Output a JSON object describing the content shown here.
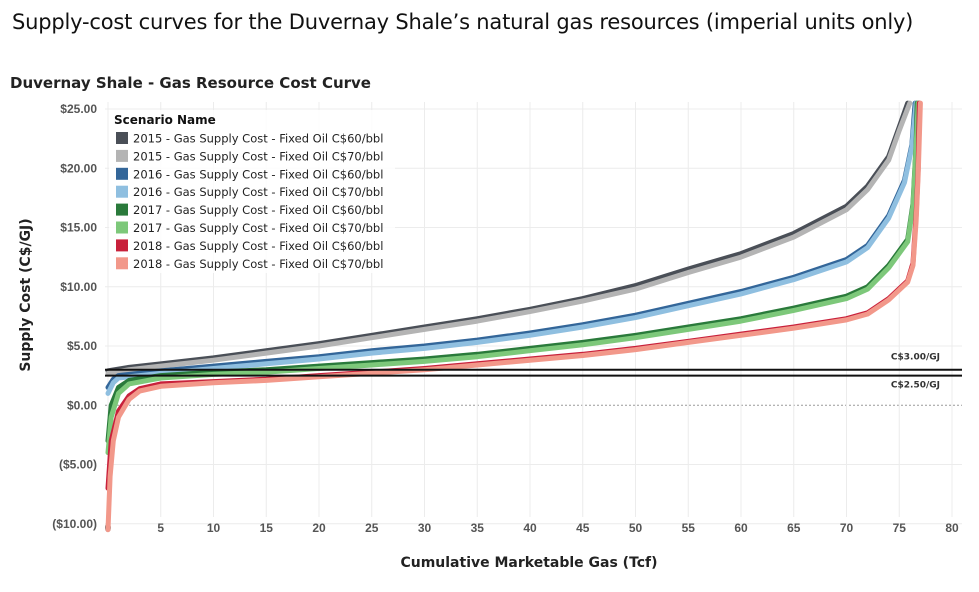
{
  "page_title": "Supply-cost curves for the Duvernay Shale’s natural gas resources (imperial units only)",
  "chart_data": {
    "type": "line",
    "title": "Duvernay Shale - Gas Resource Cost Curve",
    "xlabel": "Cumulative Marketable Gas (Tcf)",
    "ylabel": "Supply Cost (C$/GJ)",
    "xlim": [
      0,
      80
    ],
    "ylim": [
      -10,
      25
    ],
    "x_ticks": [
      "0",
      "5",
      "10",
      "15",
      "20",
      "25",
      "30",
      "35",
      "40",
      "45",
      "50",
      "55",
      "60",
      "65",
      "70",
      "75",
      "80"
    ],
    "y_ticks": [
      {
        "value": 25,
        "label": "$25.00"
      },
      {
        "value": 20,
        "label": "$20.00"
      },
      {
        "value": 15,
        "label": "$15.00"
      },
      {
        "value": 10,
        "label": "$10.00"
      },
      {
        "value": 5,
        "label": "$5.00"
      },
      {
        "value": 0,
        "label": "$0.00"
      },
      {
        "value": -5,
        "label": "($5.00)"
      },
      {
        "value": -10,
        "label": "($10.00)"
      }
    ],
    "grid": true,
    "legend_title": "Scenario Name",
    "legend_position": "top-left",
    "reference_lines": [
      {
        "value": 3.0,
        "label": "C$3.00/GJ"
      },
      {
        "value": 2.5,
        "label": "C$2.50/GJ"
      }
    ],
    "series": [
      {
        "name": "2015 - Gas Supply Cost - Fixed Oil C$60/bbl",
        "color": "#4a4f57",
        "points": [
          [
            0,
            2.9
          ],
          [
            2,
            3.2
          ],
          [
            5,
            3.5
          ],
          [
            10,
            4.0
          ],
          [
            15,
            4.6
          ],
          [
            20,
            5.2
          ],
          [
            25,
            5.9
          ],
          [
            30,
            6.6
          ],
          [
            35,
            7.3
          ],
          [
            40,
            8.1
          ],
          [
            45,
            9.0
          ],
          [
            50,
            10.1
          ],
          [
            55,
            11.5
          ],
          [
            60,
            12.8
          ],
          [
            65,
            14.5
          ],
          [
            70,
            16.8
          ],
          [
            72,
            18.5
          ],
          [
            74,
            21.0
          ],
          [
            75,
            23.5
          ],
          [
            75.8,
            25.5
          ]
        ]
      },
      {
        "name": "2015 - Gas Supply Cost - Fixed Oil C$70/bbl",
        "color": "#b4b4b4",
        "points": [
          [
            0,
            2.7
          ],
          [
            2,
            3.0
          ],
          [
            5,
            3.3
          ],
          [
            10,
            3.8
          ],
          [
            15,
            4.4
          ],
          [
            20,
            5.0
          ],
          [
            25,
            5.7
          ],
          [
            30,
            6.4
          ],
          [
            35,
            7.1
          ],
          [
            40,
            7.9
          ],
          [
            45,
            8.8
          ],
          [
            50,
            9.8
          ],
          [
            55,
            11.2
          ],
          [
            60,
            12.5
          ],
          [
            65,
            14.2
          ],
          [
            70,
            16.5
          ],
          [
            72,
            18.2
          ],
          [
            74,
            20.7
          ],
          [
            75,
            23.2
          ],
          [
            76,
            25.5
          ]
        ]
      },
      {
        "name": "2016 - Gas Supply Cost - Fixed Oil C$60/bbl",
        "color": "#336699",
        "points": [
          [
            0,
            1.5
          ],
          [
            0.5,
            2.2
          ],
          [
            1,
            2.5
          ],
          [
            5,
            2.9
          ],
          [
            10,
            3.3
          ],
          [
            15,
            3.7
          ],
          [
            20,
            4.1
          ],
          [
            25,
            4.6
          ],
          [
            30,
            5.0
          ],
          [
            35,
            5.5
          ],
          [
            40,
            6.1
          ],
          [
            45,
            6.8
          ],
          [
            50,
            7.6
          ],
          [
            55,
            8.6
          ],
          [
            60,
            9.6
          ],
          [
            65,
            10.8
          ],
          [
            70,
            12.3
          ],
          [
            72,
            13.5
          ],
          [
            74,
            16.0
          ],
          [
            75.5,
            19.0
          ],
          [
            76.2,
            22.0
          ],
          [
            76.5,
            25.5
          ]
        ]
      },
      {
        "name": "2016 - Gas Supply Cost - Fixed Oil C$70/bbl",
        "color": "#8fbfe0",
        "points": [
          [
            0,
            1.0
          ],
          [
            0.5,
            1.9
          ],
          [
            1,
            2.3
          ],
          [
            5,
            2.7
          ],
          [
            10,
            3.1
          ],
          [
            15,
            3.5
          ],
          [
            20,
            3.9
          ],
          [
            25,
            4.4
          ],
          [
            30,
            4.8
          ],
          [
            35,
            5.3
          ],
          [
            40,
            5.9
          ],
          [
            45,
            6.6
          ],
          [
            50,
            7.4
          ],
          [
            55,
            8.4
          ],
          [
            60,
            9.4
          ],
          [
            65,
            10.6
          ],
          [
            70,
            12.1
          ],
          [
            72,
            13.3
          ],
          [
            74,
            15.8
          ],
          [
            75.5,
            18.8
          ],
          [
            76.2,
            21.8
          ],
          [
            76.6,
            25.5
          ]
        ]
      },
      {
        "name": "2017 - Gas Supply Cost - Fixed Oil C$60/bbl",
        "color": "#2a7a3b",
        "points": [
          [
            0,
            -3.0
          ],
          [
            0.3,
            0.0
          ],
          [
            1,
            1.5
          ],
          [
            2,
            2.1
          ],
          [
            5,
            2.5
          ],
          [
            10,
            2.8
          ],
          [
            15,
            3.0
          ],
          [
            20,
            3.3
          ],
          [
            25,
            3.6
          ],
          [
            30,
            3.9
          ],
          [
            35,
            4.3
          ],
          [
            40,
            4.8
          ],
          [
            45,
            5.3
          ],
          [
            50,
            5.9
          ],
          [
            55,
            6.6
          ],
          [
            60,
            7.3
          ],
          [
            65,
            8.2
          ],
          [
            70,
            9.2
          ],
          [
            72,
            10.0
          ],
          [
            74,
            11.8
          ],
          [
            75.8,
            14.0
          ],
          [
            76.3,
            17.0
          ],
          [
            76.6,
            22.0
          ],
          [
            76.7,
            25.5
          ]
        ]
      },
      {
        "name": "2017 - Gas Supply Cost - Fixed Oil C$70/bbl",
        "color": "#7dc87a",
        "points": [
          [
            0,
            -4.0
          ],
          [
            0.3,
            -1.0
          ],
          [
            1,
            1.0
          ],
          [
            2,
            1.8
          ],
          [
            5,
            2.3
          ],
          [
            10,
            2.6
          ],
          [
            15,
            2.8
          ],
          [
            20,
            3.1
          ],
          [
            25,
            3.4
          ],
          [
            30,
            3.7
          ],
          [
            35,
            4.1
          ],
          [
            40,
            4.6
          ],
          [
            45,
            5.1
          ],
          [
            50,
            5.7
          ],
          [
            55,
            6.4
          ],
          [
            60,
            7.1
          ],
          [
            65,
            8.0
          ],
          [
            70,
            9.0
          ],
          [
            72,
            9.8
          ],
          [
            74,
            11.6
          ],
          [
            75.8,
            13.8
          ],
          [
            76.3,
            16.8
          ],
          [
            76.6,
            21.8
          ],
          [
            76.8,
            25.5
          ]
        ]
      },
      {
        "name": "2018 - Gas Supply Cost - Fixed Oil C$60/bbl",
        "color": "#c8213b",
        "points": [
          [
            0,
            -7.0
          ],
          [
            0.3,
            -3.0
          ],
          [
            1,
            -0.5
          ],
          [
            2,
            0.8
          ],
          [
            3,
            1.4
          ],
          [
            5,
            1.8
          ],
          [
            10,
            2.0
          ],
          [
            15,
            2.2
          ],
          [
            20,
            2.5
          ],
          [
            25,
            2.8
          ],
          [
            30,
            3.1
          ],
          [
            35,
            3.5
          ],
          [
            40,
            3.9
          ],
          [
            45,
            4.3
          ],
          [
            50,
            4.8
          ],
          [
            55,
            5.4
          ],
          [
            60,
            6.0
          ],
          [
            65,
            6.6
          ],
          [
            70,
            7.3
          ],
          [
            72,
            7.8
          ],
          [
            74,
            9.0
          ],
          [
            75.8,
            10.5
          ],
          [
            76.3,
            12.0
          ],
          [
            76.6,
            16.0
          ],
          [
            76.8,
            20.0
          ],
          [
            76.9,
            25.5
          ]
        ]
      },
      {
        "name": "2018 - Gas Supply Cost - Fixed Oil C$70/bbl",
        "color": "#f2988a",
        "points": [
          [
            0,
            -10.5
          ],
          [
            0.2,
            -6.0
          ],
          [
            0.5,
            -3.0
          ],
          [
            1,
            -1.0
          ],
          [
            2,
            0.5
          ],
          [
            3,
            1.2
          ],
          [
            5,
            1.6
          ],
          [
            10,
            1.9
          ],
          [
            15,
            2.1
          ],
          [
            20,
            2.4
          ],
          [
            25,
            2.7
          ],
          [
            30,
            3.0
          ],
          [
            35,
            3.4
          ],
          [
            40,
            3.8
          ],
          [
            45,
            4.2
          ],
          [
            50,
            4.7
          ],
          [
            55,
            5.3
          ],
          [
            60,
            5.9
          ],
          [
            65,
            6.5
          ],
          [
            70,
            7.2
          ],
          [
            72,
            7.7
          ],
          [
            74,
            8.9
          ],
          [
            75.8,
            10.4
          ],
          [
            76.3,
            11.8
          ],
          [
            76.6,
            15.5
          ],
          [
            76.8,
            19.5
          ],
          [
            77,
            25.5
          ]
        ]
      }
    ]
  }
}
